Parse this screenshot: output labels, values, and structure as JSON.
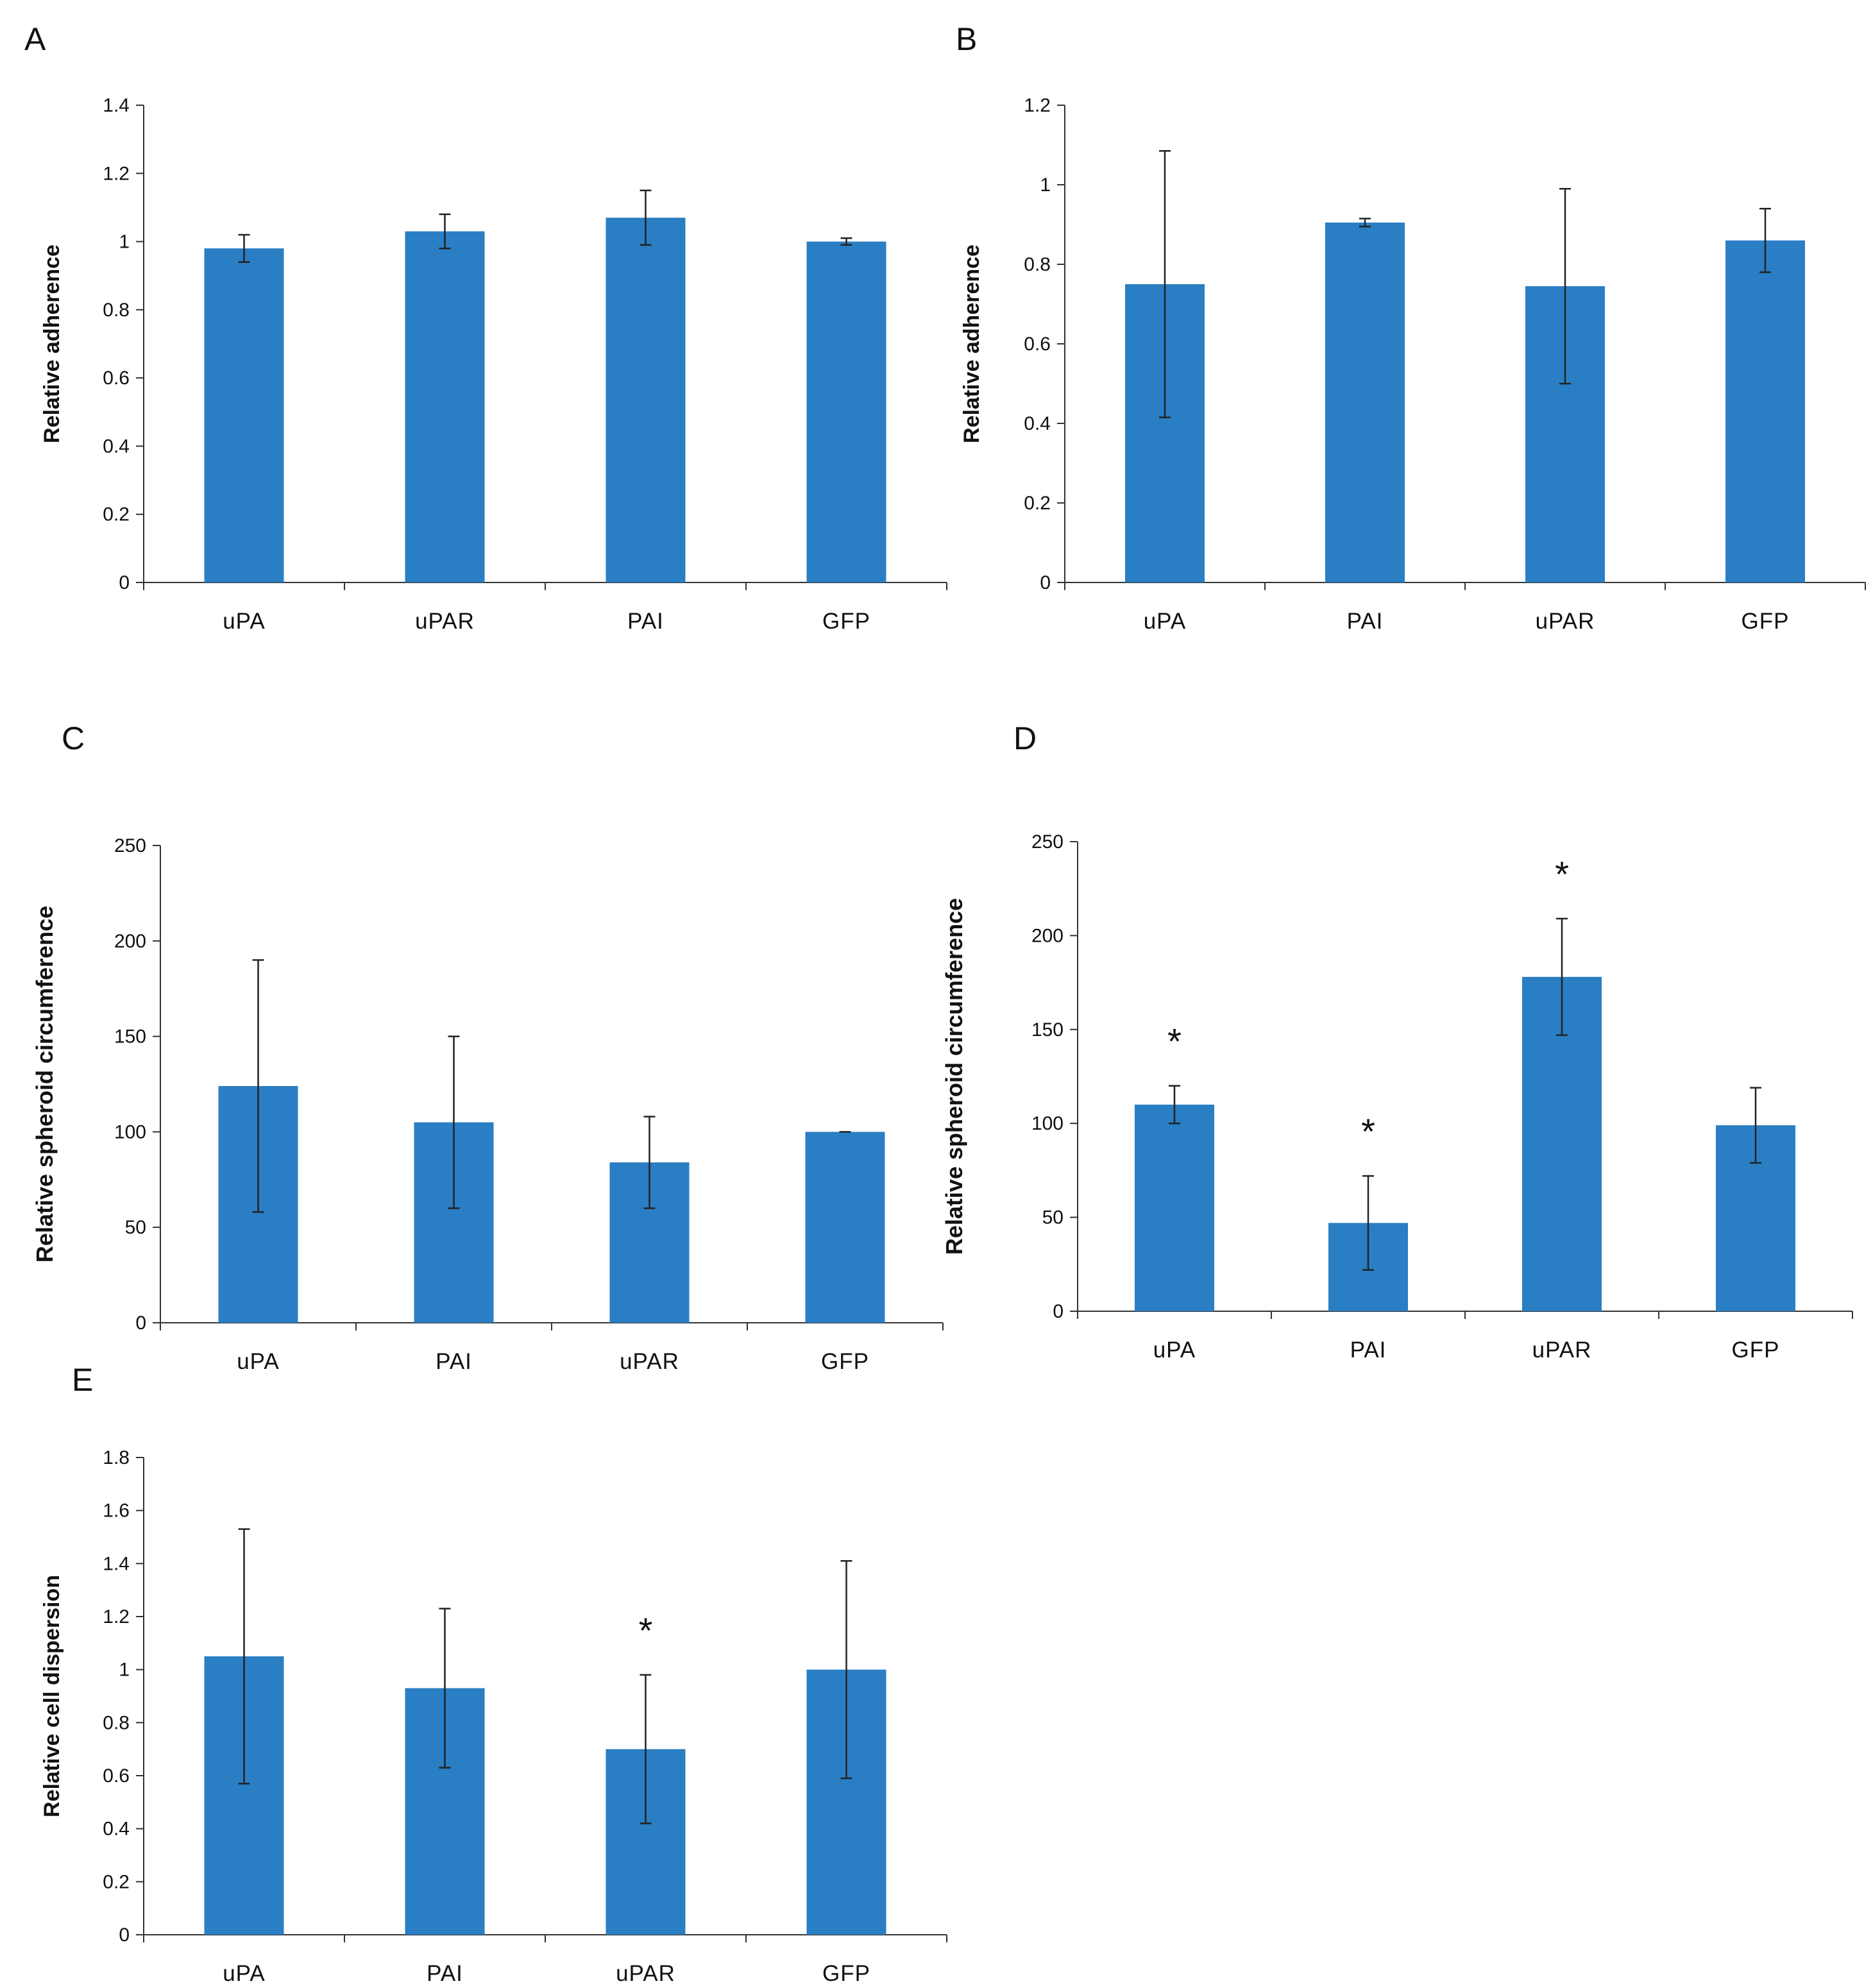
{
  "bar_color": "#2a7ec3",
  "chart_data": [
    {
      "type": "bar",
      "panel": "A",
      "categories": [
        "uPA",
        "uPAR",
        "PAI",
        "GFP"
      ],
      "values": [
        0.98,
        1.03,
        1.07,
        1.0
      ],
      "errors": [
        0.04,
        0.05,
        0.08,
        0.01
      ],
      "yticks": [
        "0",
        "0.2",
        "0.4",
        "0.6",
        "0.8",
        "1",
        "1.2",
        "1.4"
      ],
      "ylabel": "Relative adherence",
      "ylim": [
        0,
        1.4
      ],
      "significant": [
        false,
        false,
        false,
        false
      ]
    },
    {
      "type": "bar",
      "panel": "B",
      "categories": [
        "uPA",
        "PAI",
        "uPAR",
        "GFP"
      ],
      "values": [
        0.75,
        0.905,
        0.745,
        0.86
      ],
      "errors": [
        0.335,
        0.01,
        0.245,
        0.08
      ],
      "yticks": [
        "0",
        "0.2",
        "0.4",
        "0.6",
        "0.8",
        "1",
        "1.2"
      ],
      "ylabel": "Relative adherence",
      "ylim": [
        0,
        1.2
      ],
      "significant": [
        false,
        false,
        false,
        false
      ]
    },
    {
      "type": "bar",
      "panel": "C",
      "categories": [
        "uPA",
        "PAI",
        "uPAR",
        "GFP"
      ],
      "values": [
        124,
        105,
        84,
        100
      ],
      "errors": [
        66,
        45,
        24,
        0
      ],
      "yticks": [
        "0",
        "50",
        "100",
        "150",
        "200",
        "250"
      ],
      "ylabel": "Relative spheroid circumference",
      "ylim": [
        0,
        250
      ],
      "significant": [
        false,
        false,
        false,
        false
      ]
    },
    {
      "type": "bar",
      "panel": "D",
      "categories": [
        "uPA",
        "PAI",
        "uPAR",
        "GFP"
      ],
      "values": [
        110,
        47,
        178,
        99
      ],
      "errors": [
        10,
        25,
        31,
        20
      ],
      "yticks": [
        "0",
        "50",
        "100",
        "150",
        "200",
        "250"
      ],
      "ylabel": "Relative spheroid circumference",
      "ylim": [
        0,
        250
      ],
      "significant": [
        true,
        true,
        true,
        false
      ]
    },
    {
      "type": "bar",
      "panel": "E",
      "categories": [
        "uPA",
        "PAI",
        "uPAR",
        "GFP"
      ],
      "values": [
        1.05,
        0.93,
        0.7,
        1.0
      ],
      "errors": [
        0.48,
        0.3,
        0.28,
        0.41
      ],
      "yticks": [
        "0",
        "0.2",
        "0.4",
        "0.6",
        "0.8",
        "1",
        "1.2",
        "1.4",
        "1.6",
        "1.8"
      ],
      "ylabel": "Relative cell dispersion",
      "ylim": [
        0,
        1.8
      ],
      "significant": [
        false,
        false,
        true,
        false
      ]
    }
  ],
  "significance_marker": "*"
}
